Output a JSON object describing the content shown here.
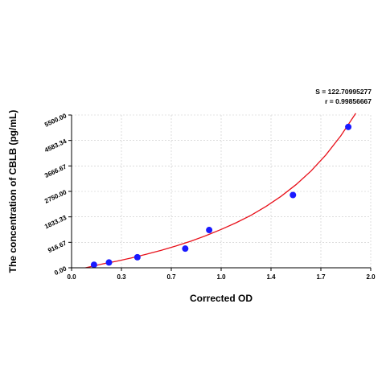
{
  "chart_data": {
    "type": "scatter",
    "title": "",
    "xlabel": "Corrected OD",
    "ylabel": "The concentration of CBLB (pg/mL)",
    "xlim": [
      0.0,
      2.0
    ],
    "ylim": [
      0.0,
      5500.0
    ],
    "x_ticks": [
      "0.0",
      "0.3",
      "0.7",
      "1.0",
      "1.4",
      "1.7",
      "2.0"
    ],
    "y_ticks": [
      "0.00",
      "916.67",
      "1833.33",
      "2750.00",
      "3666.67",
      "4583.34",
      "5500.00"
    ],
    "grid": true,
    "points": {
      "x": [
        0.15,
        0.25,
        0.44,
        0.76,
        0.92,
        1.48,
        1.85
      ],
      "y": [
        110,
        190,
        380,
        690,
        1360,
        2620,
        5070
      ]
    },
    "fit_curve": {
      "x": [
        0.0,
        0.1,
        0.2,
        0.3,
        0.4,
        0.5,
        0.6,
        0.7,
        0.8,
        0.9,
        1.0,
        1.1,
        1.2,
        1.3,
        1.4,
        1.5,
        1.6,
        1.7,
        1.8,
        1.9
      ],
      "y": [
        -110,
        10,
        130,
        235,
        355,
        490,
        630,
        790,
        965,
        1160,
        1380,
        1620,
        1890,
        2210,
        2570,
        2990,
        3480,
        4060,
        4750,
        5560
      ]
    },
    "annotations": {
      "s_text": "S = 122.70995277",
      "r_text": "r = 0.99856667"
    },
    "colors": {
      "points": "#1a1aff",
      "curve": "#e8101a",
      "grid": "#c8c8c8",
      "axis": "#000000"
    }
  }
}
